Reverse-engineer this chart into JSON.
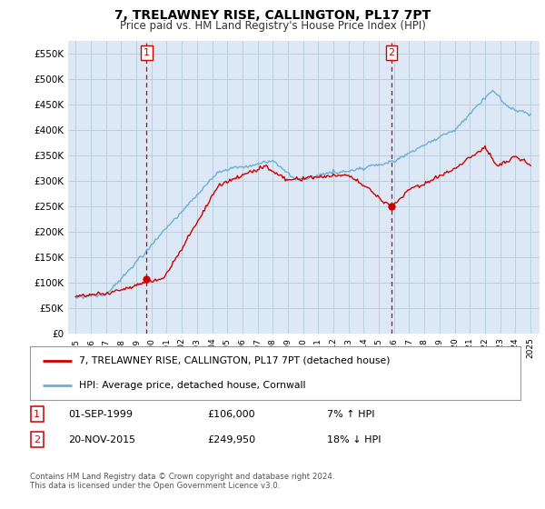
{
  "title": "7, TRELAWNEY RISE, CALLINGTON, PL17 7PT",
  "subtitle": "Price paid vs. HM Land Registry's House Price Index (HPI)",
  "hpi_label": "HPI: Average price, detached house, Cornwall",
  "property_label": "7, TRELAWNEY RISE, CALLINGTON, PL17 7PT (detached house)",
  "sale1_date": "01-SEP-1999",
  "sale1_price": 106000,
  "sale1_note": "7% ↑ HPI",
  "sale2_date": "20-NOV-2015",
  "sale2_price": 249950,
  "sale2_note": "18% ↓ HPI",
  "ylim": [
    0,
    575000
  ],
  "yticks": [
    0,
    50000,
    100000,
    150000,
    200000,
    250000,
    300000,
    350000,
    400000,
    450000,
    500000,
    550000
  ],
  "background_color": "#ffffff",
  "plot_bg_color": "#dce8f5",
  "grid_color": "#b8cfe0",
  "hpi_color": "#6baed6",
  "property_color": "#cc0000",
  "vline_color": "#cc0000",
  "marker_color": "#cc0000",
  "sale1_year_f": 1999.667,
  "sale2_year_f": 2015.833,
  "footnote": "Contains HM Land Registry data © Crown copyright and database right 2024.\nThis data is licensed under the Open Government Licence v3.0."
}
